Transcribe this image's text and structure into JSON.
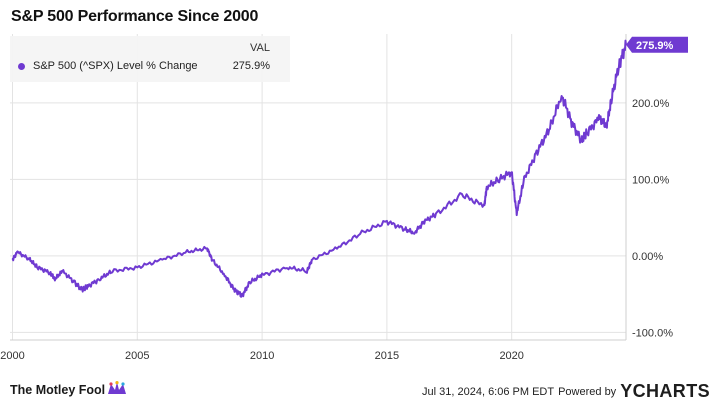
{
  "title": "S&P 500 Performance Since 2000",
  "legend": {
    "column_header": "VAL",
    "series_label": "S&P 500 (^SPX) Level % Change",
    "series_value": "275.9%"
  },
  "end_badge": "275.9%",
  "footer": {
    "brand": "The Motley Fool",
    "timestamp": "Jul 31, 2024, 6:06 PM EDT",
    "powered_by": "Powered by",
    "provider": "YCHARTS"
  },
  "colors": {
    "series": "#6f3ad1",
    "grid": "#e3e3e3",
    "badge": "#6f3ad1"
  },
  "chart_data": {
    "type": "line",
    "title": "S&P 500 Performance Since 2000",
    "x_ticks": [
      "2000",
      "2005",
      "2010",
      "2015",
      "2020"
    ],
    "y_ticks": [
      "-100.0%",
      "0.00%",
      "100.0%",
      "200.0%"
    ],
    "y_tick_values": [
      -100,
      0,
      100,
      200
    ],
    "xlim": [
      1999.9,
      2024.58
    ],
    "ylim": [
      -110,
      290
    ],
    "series": [
      {
        "name": "S&P 500 (^SPX) Level % Change",
        "x": [
          2000.0,
          2000.2,
          2000.7,
          2001.0,
          2001.5,
          2001.7,
          2002.0,
          2002.5,
          2002.8,
          2003.0,
          2003.5,
          2004.0,
          2005.0,
          2006.0,
          2007.0,
          2007.8,
          2008.0,
          2008.5,
          2008.9,
          2009.2,
          2009.5,
          2010.0,
          2011.0,
          2011.8,
          2012.0,
          2013.0,
          2014.0,
          2015.0,
          2015.7,
          2016.1,
          2016.5,
          2017.0,
          2018.0,
          2018.9,
          2019.0,
          2019.5,
          2020.0,
          2020.2,
          2020.5,
          2021.0,
          2021.5,
          2022.0,
          2022.4,
          2022.8,
          2023.0,
          2023.5,
          2023.8,
          2024.0,
          2024.3,
          2024.58
        ],
        "y": [
          -5,
          5,
          -5,
          -15,
          -22,
          -30,
          -20,
          -35,
          -45,
          -40,
          -30,
          -20,
          -15,
          -5,
          5,
          10,
          -5,
          -25,
          -45,
          -52,
          -35,
          -25,
          -15,
          -20,
          -5,
          10,
          30,
          45,
          35,
          30,
          45,
          55,
          80,
          65,
          90,
          100,
          110,
          55,
          100,
          135,
          165,
          210,
          175,
          150,
          160,
          180,
          170,
          205,
          250,
          275.9
        ]
      }
    ]
  }
}
